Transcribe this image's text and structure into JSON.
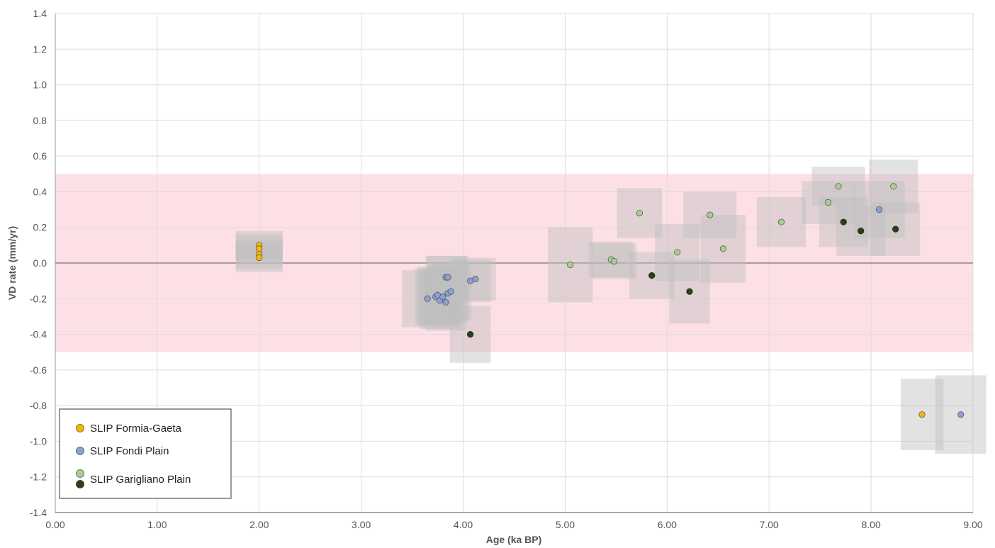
{
  "chart_data": {
    "type": "scatter",
    "xlabel": "Age (ka BP)",
    "ylabel": "VD rate (mm/yr)",
    "xlim": [
      0,
      9
    ],
    "ylim": [
      -1.4,
      1.4
    ],
    "x_ticks": [
      "0.00",
      "1.00",
      "2.00",
      "3.00",
      "4.00",
      "5.00",
      "6.00",
      "7.00",
      "8.00",
      "9.00"
    ],
    "y_ticks": [
      "1.4",
      "1.2",
      "1.0",
      "0.8",
      "0.6",
      "0.4",
      "0.2",
      "0.0",
      "-0.2",
      "-0.4",
      "-0.6",
      "-0.8",
      "-1.0",
      "-1.2",
      "-1.4"
    ],
    "grid": true,
    "legend_position": "bottom-left",
    "band": {
      "y_min": -0.5,
      "y_max": 0.5,
      "color": "#fde0e6"
    },
    "series": [
      {
        "name": "SLIP Formia-Gaeta",
        "color": "#f5b800",
        "points": [
          {
            "x": 2.0,
            "y": 0.1,
            "x_err": 0.23,
            "y_err": 0.08
          },
          {
            "x": 2.0,
            "y": 0.08,
            "x_err": 0.23,
            "y_err": 0.08
          },
          {
            "x": 2.0,
            "y": 0.05,
            "x_err": 0.23,
            "y_err": 0.08
          },
          {
            "x": 2.0,
            "y": 0.03,
            "x_err": 0.23,
            "y_err": 0.08
          },
          {
            "x": 8.5,
            "y": -0.85,
            "x_err": 0.21,
            "y_err": 0.2
          }
        ]
      },
      {
        "name": "SLIP Fondi Plain",
        "color": "#8ca0d8",
        "points": [
          {
            "x": 3.65,
            "y": -0.2,
            "x_err": 0.25,
            "y_err": 0.16
          },
          {
            "x": 3.73,
            "y": -0.19,
            "x_err": 0.2,
            "y_err": 0.16
          },
          {
            "x": 3.75,
            "y": -0.18,
            "x_err": 0.2,
            "y_err": 0.16
          },
          {
            "x": 3.77,
            "y": -0.21,
            "x_err": 0.2,
            "y_err": 0.16
          },
          {
            "x": 3.8,
            "y": -0.19,
            "x_err": 0.2,
            "y_err": 0.16
          },
          {
            "x": 3.83,
            "y": -0.22,
            "x_err": 0.2,
            "y_err": 0.16
          },
          {
            "x": 3.83,
            "y": -0.08,
            "x_err": 0.2,
            "y_err": 0.12
          },
          {
            "x": 3.85,
            "y": -0.08,
            "x_err": 0.2,
            "y_err": 0.12
          },
          {
            "x": 3.85,
            "y": -0.17,
            "x_err": 0.2,
            "y_err": 0.16
          },
          {
            "x": 3.88,
            "y": -0.16,
            "x_err": 0.2,
            "y_err": 0.16
          },
          {
            "x": 4.07,
            "y": -0.1,
            "x_err": 0.2,
            "y_err": 0.12
          },
          {
            "x": 4.12,
            "y": -0.09,
            "x_err": 0.2,
            "y_err": 0.12
          },
          {
            "x": 8.08,
            "y": 0.3,
            "x_err": 0.25,
            "y_err": 0.16
          },
          {
            "x": 8.88,
            "y": -0.85,
            "x_err": 0.25,
            "y_err": 0.22
          }
        ]
      },
      {
        "name": "SLIP Garigliano Plain",
        "color": "#a8d08d",
        "points": [
          {
            "x": 5.05,
            "y": -0.01,
            "x_err": 0.22,
            "y_err": 0.21
          },
          {
            "x": 5.45,
            "y": 0.02,
            "x_err": 0.22,
            "y_err": 0.1
          },
          {
            "x": 5.48,
            "y": 0.01,
            "x_err": 0.22,
            "y_err": 0.1
          },
          {
            "x": 5.73,
            "y": 0.28,
            "x_err": 0.22,
            "y_err": 0.14
          },
          {
            "x": 6.1,
            "y": 0.06,
            "x_err": 0.22,
            "y_err": 0.16
          },
          {
            "x": 6.42,
            "y": 0.27,
            "x_err": 0.26,
            "y_err": 0.13
          },
          {
            "x": 6.55,
            "y": 0.08,
            "x_err": 0.22,
            "y_err": 0.19
          },
          {
            "x": 7.12,
            "y": 0.23,
            "x_err": 0.24,
            "y_err": 0.14
          },
          {
            "x": 7.58,
            "y": 0.34,
            "x_err": 0.26,
            "y_err": 0.12
          },
          {
            "x": 7.68,
            "y": 0.43,
            "x_err": 0.26,
            "y_err": 0.11
          },
          {
            "x": 8.22,
            "y": 0.43,
            "x_err": 0.24,
            "y_err": 0.15
          }
        ]
      },
      {
        "name": "SLIP Garigliano Plain",
        "color": "#2b3f18",
        "points": [
          {
            "x": 4.07,
            "y": -0.4,
            "x_err": 0.2,
            "y_err": 0.16
          },
          {
            "x": 5.85,
            "y": -0.07,
            "x_err": 0.22,
            "y_err": 0.13
          },
          {
            "x": 6.22,
            "y": -0.16,
            "x_err": 0.2,
            "y_err": 0.18
          },
          {
            "x": 7.73,
            "y": 0.23,
            "x_err": 0.24,
            "y_err": 0.14
          },
          {
            "x": 7.9,
            "y": 0.18,
            "x_err": 0.24,
            "y_err": 0.14
          },
          {
            "x": 8.24,
            "y": 0.19,
            "x_err": 0.24,
            "y_err": 0.15
          }
        ]
      }
    ]
  },
  "legend": {
    "items": [
      {
        "label": "SLIP Formia-Gaeta",
        "color": "#f5b800"
      },
      {
        "label": "SLIP Fondi Plain",
        "color": "#8ca0d8"
      },
      {
        "label": "SLIP Garigliano Plain",
        "color": "#a8d08d",
        "color2": "#2b3f18"
      }
    ]
  }
}
